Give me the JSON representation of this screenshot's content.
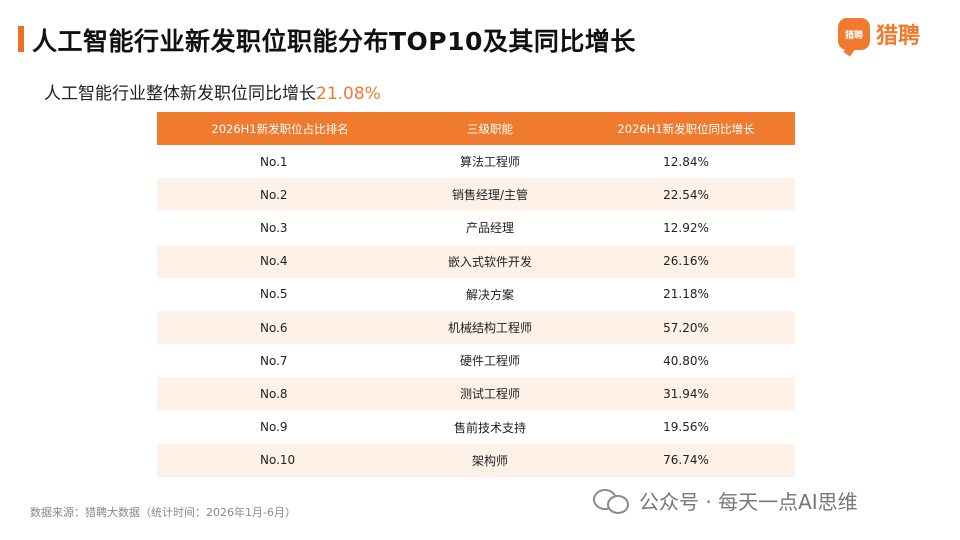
{
  "header": {
    "title": "人工智能行业新发职位职能分布TOP10及其同比增长",
    "logo_mark": "猎聘",
    "logo_text": "猎聘"
  },
  "subtitle": {
    "text": "人工智能行业整体新发职位同比增长",
    "value": "21.08%"
  },
  "table": {
    "columns": [
      "2026H1新发职位占比排名",
      "三级职能",
      "2026H1新发职位同比增长"
    ],
    "rows": [
      {
        "rank": "No.1",
        "role": "算法工程师",
        "growth": "12.84%"
      },
      {
        "rank": "No.2",
        "role": "销售经理/主管",
        "growth": "22.54%"
      },
      {
        "rank": "No.3",
        "role": "产品经理",
        "growth": "12.92%"
      },
      {
        "rank": "No.4",
        "role": "嵌入式软件开发",
        "growth": "26.16%"
      },
      {
        "rank": "No.5",
        "role": "解决方案",
        "growth": "21.18%"
      },
      {
        "rank": "No.6",
        "role": "机械结构工程师",
        "growth": "57.20%"
      },
      {
        "rank": "No.7",
        "role": "硬件工程师",
        "growth": "40.80%"
      },
      {
        "rank": "No.8",
        "role": "测试工程师",
        "growth": "31.94%"
      },
      {
        "rank": "No.9",
        "role": "售前技术支持",
        "growth": "19.56%"
      },
      {
        "rank": "No.10",
        "role": "架构师",
        "growth": "76.74%"
      }
    ]
  },
  "footer": {
    "source": "数据来源：猎聘大数据（统计时间：2026年1月-6月）",
    "watermark": "公众号 · 每天一点AI思维"
  },
  "colors": {
    "accent": "#f07a2e",
    "row_alt": "#fdf1e8"
  }
}
